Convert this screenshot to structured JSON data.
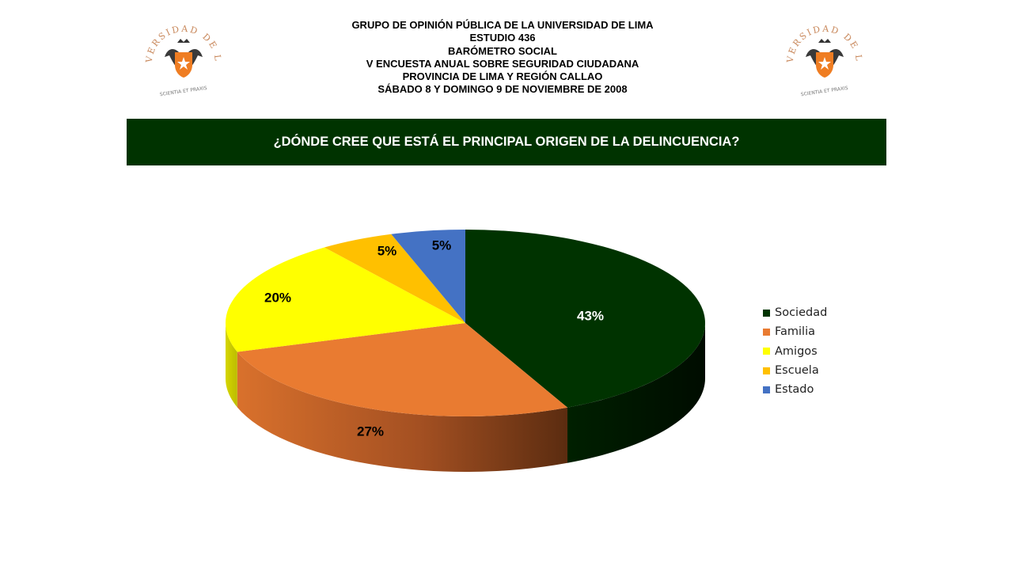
{
  "header": {
    "lines": [
      "GRUPO DE OPINIÓN PÚBLICA DE LA UNIVERSIDAD DE LIMA",
      "ESTUDIO 436",
      "BARÓMETRO SOCIAL",
      "V ENCUESTA ANUAL SOBRE SEGURIDAD CIUDADANA",
      "PROVINCIA DE LIMA Y REGIÓN CALLAO",
      "SÁBADO 8 Y DOMINGO 9 DE NOVIEMBRE DE 2008"
    ]
  },
  "logo": {
    "arc_text": "UNIVERSIDAD DE LIMA",
    "motto": "SCIENTIA ET PRAXIS",
    "icon": "university-crest-icon",
    "color": "#c8875a"
  },
  "banner": {
    "text": "¿DÓNDE CREE QUE ESTÁ EL PRINCIPAL ORIGEN DE LA DELINCUENCIA?",
    "color": "#003300"
  },
  "chart_data": {
    "type": "pie",
    "style": "3d",
    "title": "¿DÓNDE CREE QUE ESTÁ EL PRINCIPAL ORIGEN DE LA DELINCUENCIA?",
    "legend_position": "right",
    "slices": [
      {
        "name": "Sociedad",
        "value": 43,
        "label": "43%",
        "color": "#003300",
        "label_color": "#ffffff"
      },
      {
        "name": "Familia",
        "value": 27,
        "label": "27%",
        "color": "#e97b31",
        "label_color": "#000000"
      },
      {
        "name": "Amigos",
        "value": 20,
        "label": "20%",
        "color": "#ffff00",
        "label_color": "#000000"
      },
      {
        "name": "Escuela",
        "value": 5,
        "label": "5%",
        "color": "#ffc000",
        "label_color": "#000000"
      },
      {
        "name": "Estado",
        "value": 5,
        "label": "5%",
        "color": "#4472c4",
        "label_color": "#000000"
      }
    ]
  }
}
